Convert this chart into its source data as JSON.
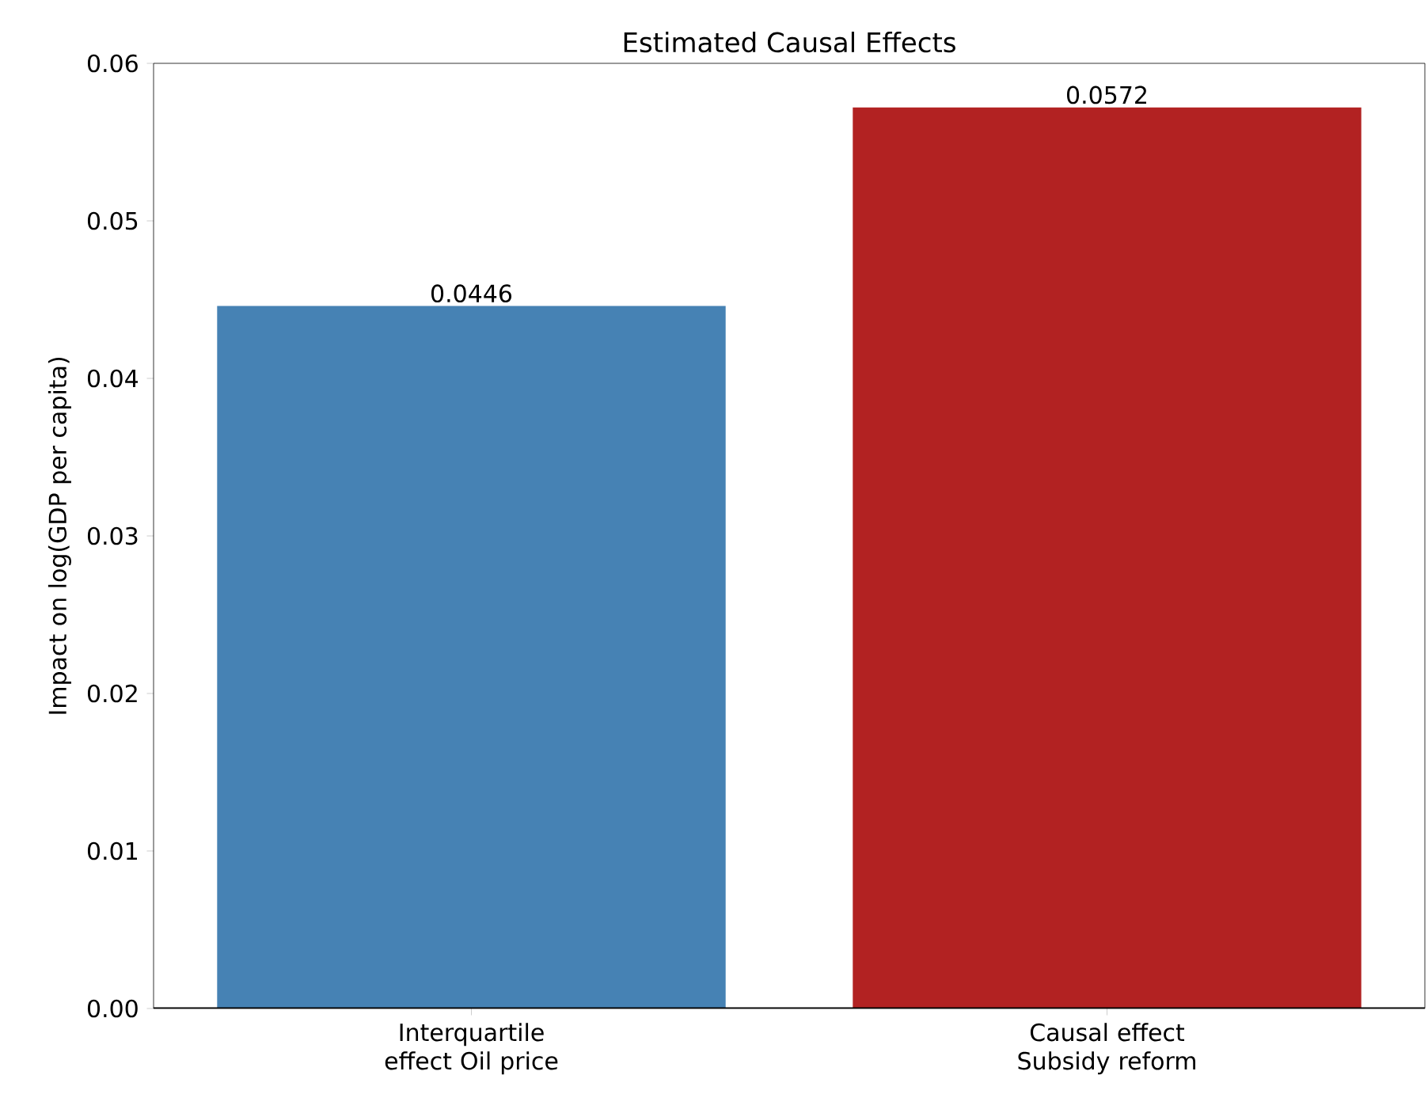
{
  "chart_data": {
    "type": "bar",
    "title": "Estimated Causal Effects",
    "ylabel": "Impact on log(GDP per capita)",
    "categories": [
      "Interquartile effect Oil price",
      "Causal effect Subsidy reform"
    ],
    "values": [
      0.0446,
      0.0572
    ],
    "colors": [
      "#4682b4",
      "#b22222"
    ],
    "data_labels": true,
    "ylim": [
      0,
      0.06
    ],
    "yticks": [
      {
        "value": 0,
        "label": "0.00"
      },
      {
        "value": 0.01,
        "label": "0.01"
      },
      {
        "value": 0.02,
        "label": "0.02"
      },
      {
        "value": 0.03,
        "label": "0.03"
      },
      {
        "value": 0.04,
        "label": "0.04"
      },
      {
        "value": 0.05,
        "label": "0.05"
      },
      {
        "value": 0.06,
        "label": "0.06"
      }
    ],
    "grid": false
  }
}
